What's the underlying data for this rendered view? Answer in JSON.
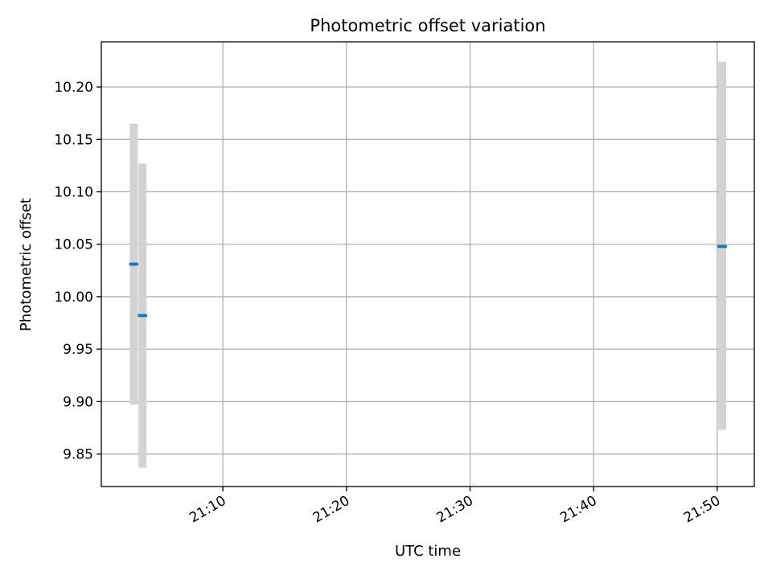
{
  "chart_data": {
    "type": "scatter",
    "title": "Photometric offset variation",
    "xlabel": "UTC time",
    "ylabel": "Photometric offset",
    "x_is_time": true,
    "xlim": [
      "21:00:10",
      "21:53:00"
    ],
    "ylim": [
      9.819,
      10.243
    ],
    "xticks": [
      "21:10",
      "21:20",
      "21:30",
      "21:40",
      "21:50"
    ],
    "yticks": [
      9.85,
      9.9,
      9.95,
      10.0,
      10.05,
      10.1,
      10.15,
      10.2
    ],
    "ytick_labels": [
      "9.85",
      "9.90",
      "9.95",
      "10.00",
      "10.05",
      "10.10",
      "10.15",
      "10.20"
    ],
    "grid": true,
    "series": [
      {
        "points": [
          {
            "x": "21:02:48",
            "y": 10.031,
            "ylow": 9.897,
            "yhigh": 10.165
          },
          {
            "x": "21:03:30",
            "y": 9.982,
            "ylow": 9.837,
            "yhigh": 10.127
          },
          {
            "x": "21:50:24",
            "y": 10.048,
            "ylow": 9.873,
            "yhigh": 10.224
          }
        ],
        "marker_color": "#1f77b4",
        "errorbar_color": "#d3d3d3"
      }
    ]
  }
}
